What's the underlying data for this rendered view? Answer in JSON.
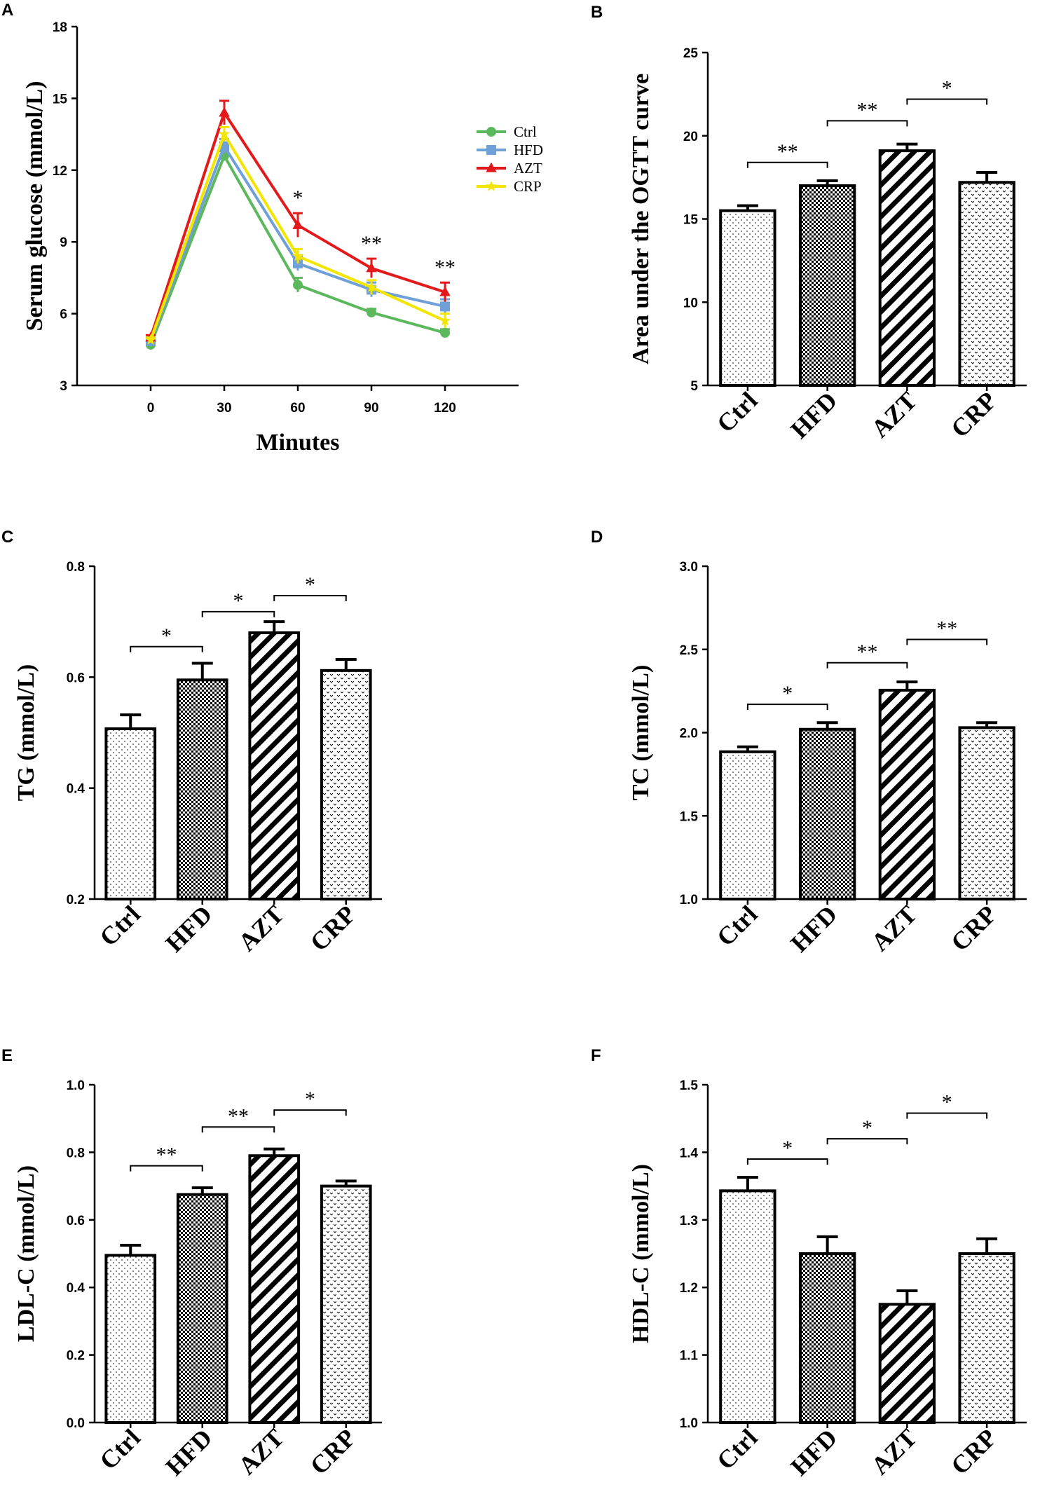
{
  "colors": {
    "Ctrl": "#5cb85c",
    "HFD": "#6fa0d8",
    "AZT": "#e31a1c",
    "CRP": "#f2e600"
  },
  "chart_data": [
    {
      "panel": "A",
      "type": "line",
      "xlabel": "Minutes",
      "ylabel": "Serum glucose (mmol/L)",
      "x": [
        0,
        30,
        60,
        90,
        120
      ],
      "xlim": [
        -30,
        150
      ],
      "ylim": [
        3,
        18
      ],
      "yticks": [
        3,
        6,
        9,
        12,
        15,
        18
      ],
      "series": [
        {
          "name": "Ctrl",
          "values": [
            4.7,
            12.6,
            7.2,
            6.05,
            5.2
          ],
          "err": [
            0.1,
            0.2,
            0.3,
            0.15,
            0.15
          ],
          "marker": "circle"
        },
        {
          "name": "HFD",
          "values": [
            4.85,
            13.0,
            8.1,
            7.0,
            6.3
          ],
          "err": [
            0.1,
            0.3,
            0.3,
            0.3,
            0.3
          ],
          "marker": "square"
        },
        {
          "name": "AZT",
          "values": [
            5.0,
            14.4,
            9.7,
            7.9,
            6.9
          ],
          "err": [
            0.1,
            0.5,
            0.5,
            0.4,
            0.4
          ],
          "marker": "triangle"
        },
        {
          "name": "CRP",
          "values": [
            4.9,
            13.5,
            8.4,
            7.1,
            5.7
          ],
          "err": [
            0.1,
            0.3,
            0.3,
            0.3,
            0.3
          ],
          "marker": "star"
        }
      ],
      "annotations": [
        {
          "x": 60,
          "label": "*"
        },
        {
          "x": 90,
          "label": "**"
        },
        {
          "x": 120,
          "label": "**"
        }
      ]
    },
    {
      "panel": "B",
      "type": "bar",
      "ylabel": "Area under the OGTT curve",
      "categories": [
        "Ctrl",
        "HFD",
        "AZT",
        "CRP"
      ],
      "values": [
        15.5,
        17.0,
        19.1,
        17.2
      ],
      "err": [
        0.3,
        0.3,
        0.4,
        0.6
      ],
      "ylim": [
        5,
        25
      ],
      "yticks": [
        5,
        10,
        15,
        20,
        25
      ],
      "yticklabels": [
        "5",
        "10",
        "15",
        "20",
        "25"
      ],
      "brackets": [
        {
          "from": 0,
          "to": 1,
          "y": 18.4,
          "label": "**"
        },
        {
          "from": 1,
          "to": 2,
          "y": 20.9,
          "label": "**"
        },
        {
          "from": 2,
          "to": 3,
          "y": 22.2,
          "label": "*"
        }
      ]
    },
    {
      "panel": "C",
      "type": "bar",
      "ylabel": "TG (mmol/L)",
      "categories": [
        "Ctrl",
        "HFD",
        "AZT",
        "CRP"
      ],
      "values": [
        0.507,
        0.595,
        0.68,
        0.612
      ],
      "err": [
        0.025,
        0.03,
        0.02,
        0.02
      ],
      "ylim": [
        0.2,
        0.8
      ],
      "yticks": [
        0.2,
        0.4,
        0.6,
        0.8
      ],
      "yticklabels": [
        "0.2",
        "0.4",
        "0.6",
        "0.8"
      ],
      "brackets": [
        {
          "from": 0,
          "to": 1,
          "y": 0.655,
          "label": "*"
        },
        {
          "from": 1,
          "to": 2,
          "y": 0.718,
          "label": "*"
        },
        {
          "from": 2,
          "to": 3,
          "y": 0.747,
          "label": "*"
        }
      ]
    },
    {
      "panel": "D",
      "type": "bar",
      "ylabel": "TC (mmol/L)",
      "categories": [
        "Ctrl",
        "HFD",
        "AZT",
        "CRP"
      ],
      "values": [
        1.885,
        2.02,
        2.255,
        2.03
      ],
      "err": [
        0.03,
        0.04,
        0.05,
        0.03
      ],
      "ylim": [
        1.0,
        3.0
      ],
      "yticks": [
        1.0,
        1.5,
        2.0,
        2.5,
        3.0
      ],
      "yticklabels": [
        "1.0",
        "1.5",
        "2.0",
        "2.5",
        "3.0"
      ],
      "brackets": [
        {
          "from": 0,
          "to": 1,
          "y": 2.17,
          "label": "*"
        },
        {
          "from": 1,
          "to": 2,
          "y": 2.42,
          "label": "**"
        },
        {
          "from": 2,
          "to": 3,
          "y": 2.56,
          "label": "**"
        }
      ]
    },
    {
      "panel": "E",
      "type": "bar",
      "ylabel": "LDL-C (mmol/L)",
      "categories": [
        "Ctrl",
        "HFD",
        "AZT",
        "CRP"
      ],
      "values": [
        0.495,
        0.675,
        0.79,
        0.7
      ],
      "err": [
        0.03,
        0.02,
        0.02,
        0.015
      ],
      "ylim": [
        0.0,
        1.0
      ],
      "yticks": [
        0.0,
        0.2,
        0.4,
        0.6,
        0.8,
        1.0
      ],
      "yticklabels": [
        "0.0",
        "0.2",
        "0.4",
        "0.6",
        "0.8",
        "1.0"
      ],
      "brackets": [
        {
          "from": 0,
          "to": 1,
          "y": 0.76,
          "label": "**"
        },
        {
          "from": 1,
          "to": 2,
          "y": 0.875,
          "label": "**"
        },
        {
          "from": 2,
          "to": 3,
          "y": 0.925,
          "label": "*"
        }
      ]
    },
    {
      "panel": "F",
      "type": "bar",
      "ylabel": "HDL-C (mmol/L)",
      "categories": [
        "Ctrl",
        "HFD",
        "AZT",
        "CRP"
      ],
      "values": [
        1.343,
        1.25,
        1.175,
        1.25
      ],
      "err": [
        0.02,
        0.025,
        0.02,
        0.022
      ],
      "ylim": [
        1.0,
        1.5
      ],
      "yticks": [
        1.0,
        1.1,
        1.2,
        1.3,
        1.4,
        1.5
      ],
      "yticklabels": [
        "1.0",
        "1.1",
        "1.2",
        "1.3",
        "1.4",
        "1.5"
      ],
      "brackets": [
        {
          "from": 0,
          "to": 1,
          "y": 1.39,
          "label": "*"
        },
        {
          "from": 1,
          "to": 2,
          "y": 1.42,
          "label": "*"
        },
        {
          "from": 2,
          "to": 3,
          "y": 1.458,
          "label": "*"
        }
      ]
    }
  ]
}
